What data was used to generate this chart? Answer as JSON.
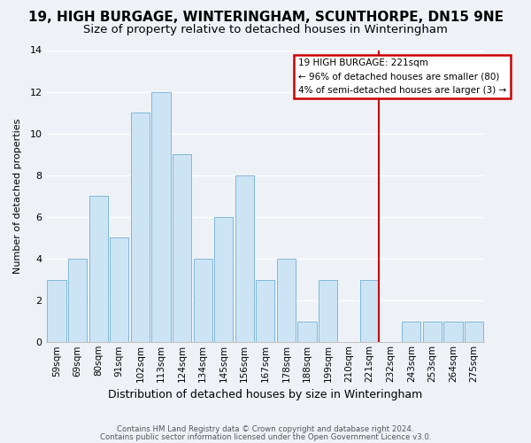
{
  "title": "19, HIGH BURGAGE, WINTERINGHAM, SCUNTHORPE, DN15 9NE",
  "subtitle": "Size of property relative to detached houses in Winteringham",
  "xlabel": "Distribution of detached houses by size in Winteringham",
  "ylabel": "Number of detached properties",
  "bar_labels": [
    "59sqm",
    "69sqm",
    "80sqm",
    "91sqm",
    "102sqm",
    "113sqm",
    "124sqm",
    "134sqm",
    "145sqm",
    "156sqm",
    "167sqm",
    "178sqm",
    "188sqm",
    "199sqm",
    "210sqm",
    "221sqm",
    "232sqm",
    "243sqm",
    "253sqm",
    "264sqm",
    "275sqm"
  ],
  "bar_values": [
    3,
    4,
    7,
    5,
    11,
    12,
    9,
    4,
    6,
    8,
    3,
    4,
    1,
    3,
    0,
    3,
    0,
    1,
    1,
    1,
    1
  ],
  "bar_color": "#cde4f5",
  "bar_edge_color": "#7eb8da",
  "highlight_label": "221sqm",
  "highlight_line_color": "#cc0000",
  "annotation_title": "19 HIGH BURGAGE: 221sqm",
  "annotation_line1": "← 96% of detached houses are smaller (80)",
  "annotation_line2": "4% of semi-detached houses are larger (3) →",
  "annotation_box_edgecolor": "#cc0000",
  "footer1": "Contains HM Land Registry data © Crown copyright and database right 2024.",
  "footer2": "Contains public sector information licensed under the Open Government Licence v3.0.",
  "ylim": [
    0,
    14
  ],
  "yticks": [
    0,
    2,
    4,
    6,
    8,
    10,
    12,
    14
  ],
  "background_color": "#eef2f7",
  "title_fontsize": 11,
  "subtitle_fontsize": 9.5
}
